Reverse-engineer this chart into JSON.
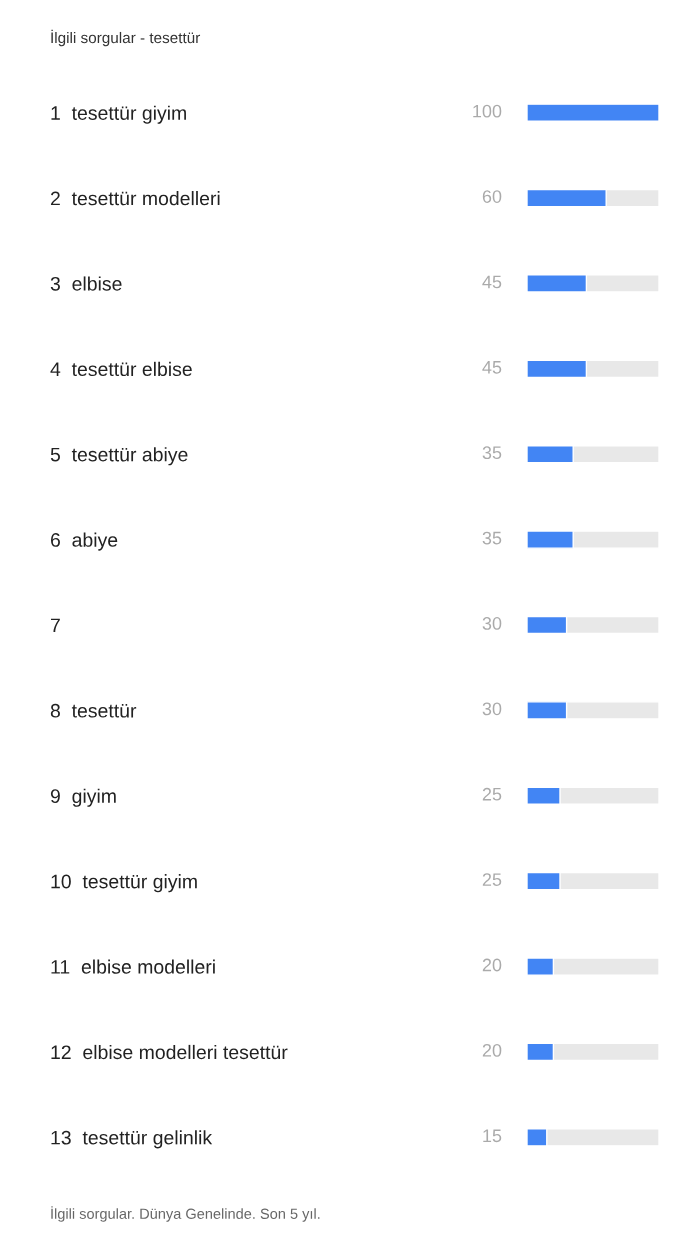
{
  "chart_data": {
    "type": "bar",
    "orientation": "horizontal",
    "title": "İlgili sorgular - tesettür",
    "categories": [
      "1  tesettür giyim",
      "2  tesettür modelleri",
      "3  elbise",
      "4  tesettür elbise",
      "5  tesettür abiye",
      "6  abiye",
      "7",
      "8  tesettür",
      "9  giyim",
      "10  tesettür giyim",
      "11  elbise modelleri",
      "12  elbise modelleri tesettür",
      "13  tesettür gelinlik"
    ],
    "values": [
      100,
      60,
      45,
      45,
      35,
      35,
      30,
      30,
      25,
      25,
      20,
      20,
      15
    ],
    "color": "#4285f4",
    "xlim": [
      0,
      100
    ],
    "tick_labels": "y",
    "data_labels": true,
    "annotations": [
      "İlgili sorgular. Dünya Genelinde. Son 5 yıl."
    ]
  }
}
